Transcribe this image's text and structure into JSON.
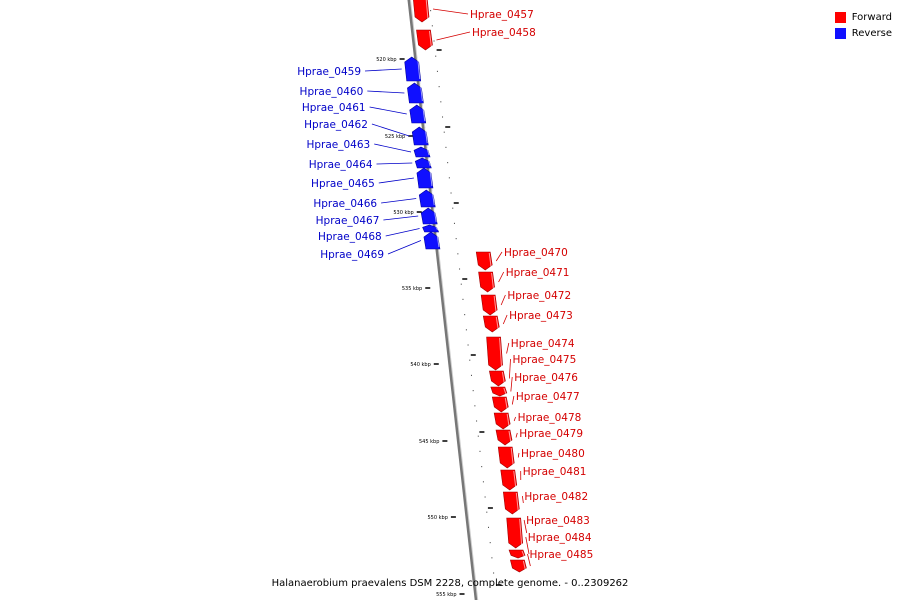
{
  "legend": {
    "forward": {
      "label": "Forward",
      "color": "#ff0000"
    },
    "reverse": {
      "label": "Reverse",
      "color": "#1010ff"
    }
  },
  "caption": "Halanaerobium praevalens DSM 2228, complete genome. - 0..2309262",
  "colors": {
    "backbone": "#777777",
    "forward_label": "#d40000",
    "reverse_label": "#0000c8"
  },
  "scale_ticks": [
    "520 kbp",
    "525 kbp",
    "530 kbp",
    "535 kbp",
    "540 kbp",
    "545 kbp",
    "550 kbp",
    "555 kbp"
  ],
  "genes": [
    {
      "name": "Hprae_0457",
      "strand": "forward"
    },
    {
      "name": "Hprae_0458",
      "strand": "forward"
    },
    {
      "name": "Hprae_0459",
      "strand": "reverse"
    },
    {
      "name": "Hprae_0460",
      "strand": "reverse"
    },
    {
      "name": "Hprae_0461",
      "strand": "reverse"
    },
    {
      "name": "Hprae_0462",
      "strand": "reverse"
    },
    {
      "name": "Hprae_0463",
      "strand": "reverse"
    },
    {
      "name": "Hprae_0464",
      "strand": "reverse"
    },
    {
      "name": "Hprae_0465",
      "strand": "reverse"
    },
    {
      "name": "Hprae_0466",
      "strand": "reverse"
    },
    {
      "name": "Hprae_0467",
      "strand": "reverse"
    },
    {
      "name": "Hprae_0468",
      "strand": "reverse"
    },
    {
      "name": "Hprae_0469",
      "strand": "reverse"
    },
    {
      "name": "Hprae_0470",
      "strand": "forward"
    },
    {
      "name": "Hprae_0471",
      "strand": "forward"
    },
    {
      "name": "Hprae_0472",
      "strand": "forward"
    },
    {
      "name": "Hprae_0473",
      "strand": "forward"
    },
    {
      "name": "Hprae_0474",
      "strand": "forward"
    },
    {
      "name": "Hprae_0475",
      "strand": "forward"
    },
    {
      "name": "Hprae_0476",
      "strand": "forward"
    },
    {
      "name": "Hprae_0477",
      "strand": "forward"
    },
    {
      "name": "Hprae_0478",
      "strand": "forward"
    },
    {
      "name": "Hprae_0479",
      "strand": "forward"
    },
    {
      "name": "Hprae_0480",
      "strand": "forward"
    },
    {
      "name": "Hprae_0481",
      "strand": "forward"
    },
    {
      "name": "Hprae_0482",
      "strand": "forward"
    },
    {
      "name": "Hprae_0483",
      "strand": "forward"
    },
    {
      "name": "Hprae_0484",
      "strand": "forward"
    },
    {
      "name": "Hprae_0485",
      "strand": "forward"
    }
  ]
}
